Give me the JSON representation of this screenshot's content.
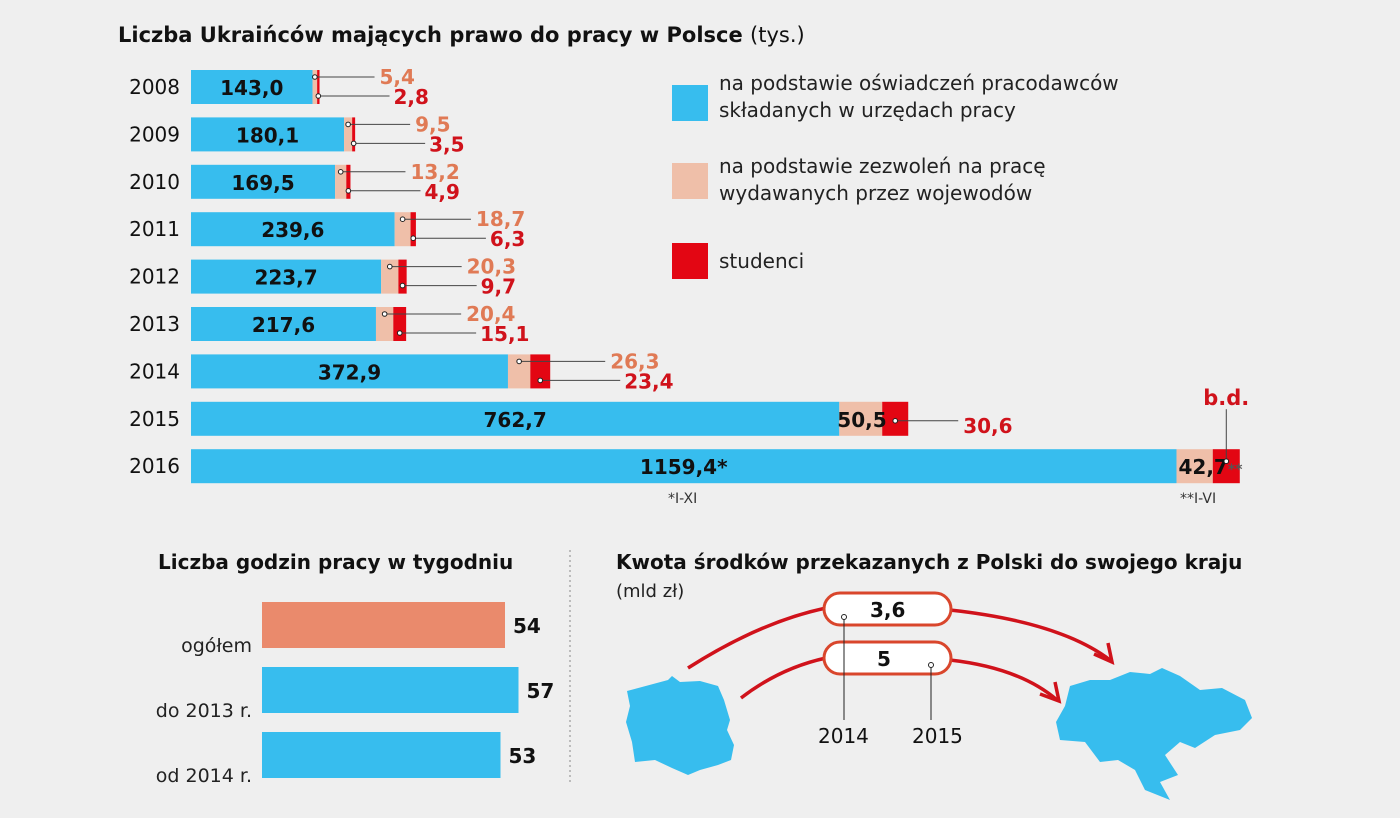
{
  "colors": {
    "blue": "#37bdee",
    "pink": "#efbfa9",
    "red": "#e30613",
    "salmon": "#ea8a6c",
    "pink_text": "#e07a55",
    "red_text": "#d0121b"
  },
  "chart_data": [
    {
      "type": "bar",
      "orientation": "horizontal-stacked",
      "title": "Liczba Ukraińców mających prawo do pracy w Polsce",
      "unit": "(tys.)",
      "categories": [
        "2008",
        "2009",
        "2010",
        "2011",
        "2012",
        "2013",
        "2014",
        "2015",
        "2016"
      ],
      "series": [
        {
          "name": "na podstawie oświadczeń pracodawców składanych w urzędach pracy",
          "values": [
            143.0,
            180.1,
            169.5,
            239.6,
            223.7,
            217.6,
            372.9,
            762.7,
            1159.4
          ],
          "labels": [
            "143,0",
            "180,1",
            "169,5",
            "239,6",
            "223,7",
            "217,6",
            "372,9",
            "762,7",
            "1159,4"
          ]
        },
        {
          "name": "na podstawie zezwoleń na pracę wydawanych przez wojewodów",
          "values": [
            5.4,
            9.5,
            13.2,
            18.7,
            20.3,
            20.4,
            26.3,
            50.5,
            42.7
          ],
          "labels": [
            "5,4",
            "9,5",
            "13,2",
            "18,7",
            "20,3",
            "20,4",
            "26,3",
            "50,5",
            "42,7"
          ]
        },
        {
          "name": "studenci",
          "values": [
            2.8,
            3.5,
            4.9,
            6.3,
            9.7,
            15.1,
            23.4,
            30.6,
            null
          ],
          "labels": [
            "2,8",
            "3,5",
            "4,9",
            "6,3",
            "9,7",
            "15,1",
            "23,4",
            "30,6",
            "b.d."
          ]
        }
      ],
      "annotations": {
        "star1": "*",
        "star2": "**",
        "note1": "*I-XI",
        "note2": "**I-VI"
      },
      "legend": [
        "na podstawie oświadczeń pracodawców",
        "składanych w urzędach pracy",
        "na podstawie zezwoleń na pracę",
        "wydawanych przez wojewodów",
        "studenci"
      ],
      "legend_placement": "right"
    },
    {
      "type": "bar",
      "orientation": "horizontal",
      "title": "Liczba godzin pracy w tygodniu",
      "categories": [
        "ogółem",
        "do 2013 r.",
        "od 2014 r."
      ],
      "values": [
        54,
        57,
        53
      ],
      "labels": [
        "54",
        "57",
        "53"
      ]
    },
    {
      "type": "other",
      "title": "Kwota środków przekazanych z Polski do swojego kraju",
      "unit": "(mld zł)",
      "categories": [
        "2014",
        "2015"
      ],
      "values": [
        3.6,
        5
      ],
      "labels": [
        "3,6",
        "5"
      ]
    }
  ]
}
